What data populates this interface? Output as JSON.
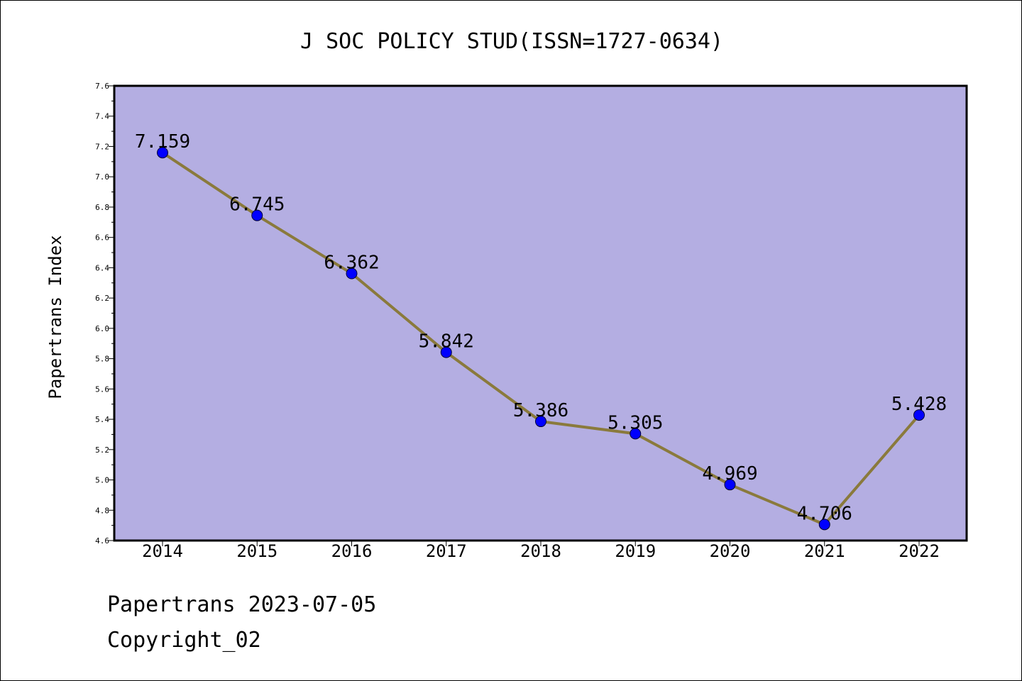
{
  "chart_data": {
    "type": "line",
    "title": "J SOC POLICY STUD(ISSN=1727-0634)",
    "xlabel": "",
    "ylabel": "Papertrans Index",
    "categories": [
      "2014",
      "2015",
      "2016",
      "2017",
      "2018",
      "2019",
      "2020",
      "2021",
      "2022"
    ],
    "values": [
      7.159,
      6.745,
      6.362,
      5.842,
      5.386,
      5.305,
      4.969,
      4.706,
      5.428
    ],
    "data_labels": [
      "7.159",
      "6.745",
      "6.362",
      "5.842",
      "5.386",
      "5.305",
      "4.969",
      "4.706",
      "5.428"
    ],
    "ylim": [
      4.6,
      7.6
    ],
    "yticks": [
      "4.6",
      "4.8",
      "5.0",
      "5.2",
      "5.4",
      "5.6",
      "5.8",
      "6.0",
      "6.2",
      "6.4",
      "6.6",
      "6.8",
      "7.0",
      "7.2",
      "7.4",
      "7.6"
    ],
    "grid": false,
    "legend": "none",
    "colors": {
      "plot_background": "#b4aee2",
      "line": "#8a7a3c",
      "marker": "#0000ff"
    }
  },
  "footer": {
    "source": "Papertrans 2023-07-05",
    "copyright": "Copyright_02"
  }
}
